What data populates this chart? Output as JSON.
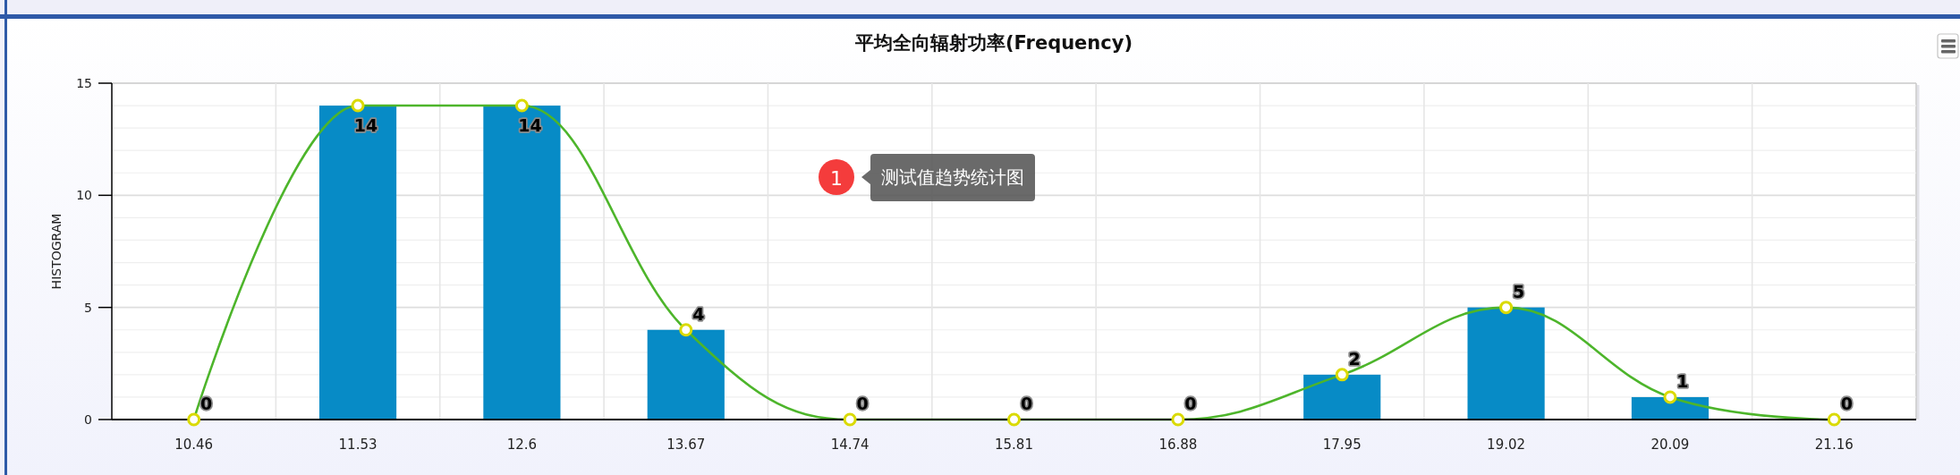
{
  "chart_data": {
    "type": "bar",
    "title": "平均全向辐射功率(Frequency)",
    "ylabel": "HISTOGRAM",
    "categories": [
      "10.46",
      "11.53",
      "12.6",
      "13.67",
      "14.74",
      "15.81",
      "16.88",
      "17.95",
      "19.02",
      "20.09",
      "21.16"
    ],
    "series": [
      {
        "color": "#078bc6",
        "values": [
          0,
          14,
          14,
          4,
          0,
          0,
          0,
          2,
          5,
          1,
          0
        ]
      },
      {
        "type": "line",
        "color": "#4db52b",
        "marker": "circle",
        "data_labels": true,
        "values": [
          0,
          14,
          14,
          4,
          0,
          0,
          0,
          2,
          5,
          1,
          0
        ]
      }
    ],
    "ylim": [
      0,
      15
    ],
    "yticks": [
      0,
      {
        "value": 1,
        "label": null
      },
      {
        "value": 2,
        "label": null
      },
      {
        "value": 3,
        "label": null
      },
      {
        "value": 4,
        "label": null
      },
      5,
      {
        "value": 6,
        "label": null
      },
      {
        "value": 7,
        "label": null
      },
      {
        "value": 8,
        "label": null
      },
      {
        "value": 9,
        "label": null
      },
      10,
      {
        "value": 11,
        "label": null
      },
      {
        "value": 12,
        "label": null
      },
      {
        "value": 13,
        "label": null
      },
      {
        "value": 14,
        "label": null
      },
      15
    ],
    "grid": true,
    "annotations": [
      "1",
      "测试值趋势统计图"
    ]
  }
}
